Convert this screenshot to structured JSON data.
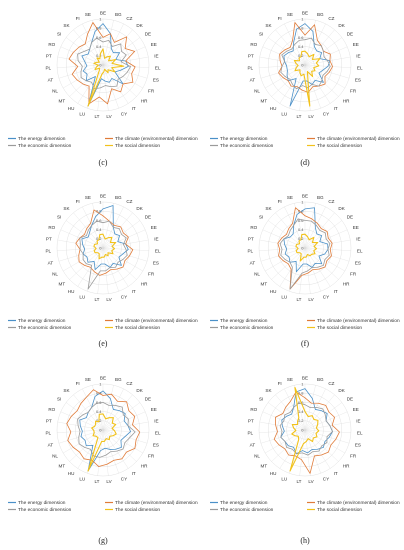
{
  "figure": {
    "countries": [
      "BE",
      "BG",
      "CZ",
      "DK",
      "DE",
      "EE",
      "IE",
      "EL",
      "ES",
      "FR",
      "HR",
      "IT",
      "CY",
      "LV",
      "LT",
      "LU",
      "HU",
      "MT",
      "NL",
      "AT",
      "PL",
      "PT",
      "RO",
      "SI",
      "SK",
      "FI",
      "SE"
    ],
    "ticks": [
      "0",
      "0.2",
      "0.4",
      "0.6",
      "0.8",
      "1"
    ],
    "legend": {
      "energy": "The energy dimension",
      "climate": "The climate (environmental) dimension",
      "economic": "The economic dimension",
      "social": "The social dimension"
    },
    "colors": {
      "energy": "#4a90c8",
      "climate": "#e07b39",
      "economic": "#9b9b9b",
      "social": "#f2c21b",
      "grid": "#d9d9d9"
    }
  },
  "chart_data": [
    {
      "type": "radar",
      "panel": "(c)",
      "axes_range": [
        0,
        1
      ],
      "series": [
        {
          "name": "The energy dimension",
          "values": [
            0.9,
            0.7,
            0.4,
            0.35,
            0.45,
            0.3,
            0.5,
            0.55,
            0.4,
            0.3,
            0.6,
            0.35,
            0.4,
            0.35,
            0.3,
            0.95,
            0.3,
            0.5,
            0.4,
            0.45,
            0.35,
            0.4,
            0.5,
            0.4,
            0.45,
            0.55,
            0.75
          ]
        },
        {
          "name": "The climate (environmental) dimension",
          "values": [
            0.6,
            0.7,
            0.55,
            0.8,
            0.6,
            0.75,
            0.5,
            0.7,
            0.65,
            0.75,
            0.6,
            0.7,
            0.55,
            0.85,
            0.7,
            0.9,
            0.55,
            0.6,
            0.65,
            0.7,
            0.55,
            0.75,
            0.7,
            0.65,
            0.6,
            0.75,
            0.95
          ]
        },
        {
          "name": "The economic dimension",
          "values": [
            0.5,
            0.55,
            0.45,
            0.6,
            0.5,
            0.55,
            0.4,
            0.6,
            0.55,
            0.5,
            0.45,
            0.55,
            0.5,
            0.45,
            0.5,
            0.55,
            0.45,
            0.5,
            0.55,
            0.5,
            0.45,
            0.55,
            0.6,
            0.5,
            0.45,
            0.55,
            0.6
          ]
        },
        {
          "name": "The social dimension",
          "values": [
            0.35,
            0.15,
            0.2,
            0.25,
            0.15,
            0.3,
            0.2,
            0.45,
            0.2,
            0.3,
            0.15,
            0.2,
            0.1,
            0.15,
            0.2,
            0.95,
            0.15,
            0.1,
            0.2,
            0.15,
            0.1,
            0.2,
            0.15,
            0.1,
            0.2,
            0.15,
            0.25
          ]
        }
      ]
    },
    {
      "type": "radar",
      "panel": "(d)",
      "axes_range": [
        0,
        1
      ],
      "series": [
        {
          "name": "The energy dimension",
          "values": [
            0.9,
            0.75,
            0.45,
            0.4,
            0.45,
            0.35,
            0.55,
            0.5,
            0.4,
            0.35,
            0.55,
            0.4,
            0.45,
            0.35,
            0.35,
            0.95,
            0.35,
            0.5,
            0.45,
            0.4,
            0.4,
            0.45,
            0.5,
            0.45,
            0.4,
            0.55,
            0.8
          ]
        },
        {
          "name": "The climate (environmental) dimension",
          "values": [
            0.65,
            0.9,
            0.6,
            0.55,
            0.5,
            0.6,
            0.55,
            0.6,
            0.55,
            0.5,
            0.6,
            0.55,
            0.5,
            0.6,
            0.55,
            0.5,
            0.55,
            0.5,
            0.55,
            0.6,
            0.5,
            0.55,
            0.6,
            0.55,
            0.5,
            0.6,
            0.95
          ]
        },
        {
          "name": "The economic dimension",
          "values": [
            0.55,
            0.6,
            0.5,
            0.55,
            0.5,
            0.45,
            0.5,
            0.55,
            0.5,
            0.45,
            0.5,
            0.55,
            0.45,
            0.5,
            0.45,
            0.55,
            0.5,
            0.45,
            0.5,
            0.55,
            0.5,
            0.45,
            0.55,
            0.5,
            0.45,
            0.5,
            0.55
          ]
        },
        {
          "name": "The social dimension",
          "values": [
            0.3,
            0.25,
            0.2,
            0.3,
            0.2,
            0.35,
            0.25,
            0.3,
            0.2,
            0.25,
            0.2,
            0.3,
            0.15,
            0.9,
            0.2,
            0.25,
            0.2,
            0.15,
            0.25,
            0.2,
            0.15,
            0.2,
            0.25,
            0.15,
            0.2,
            0.2,
            0.3
          ]
        }
      ]
    },
    {
      "type": "radar",
      "panel": "(e)",
      "axes_range": [
        0,
        1
      ],
      "series": [
        {
          "name": "The energy dimension",
          "values": [
            0.85,
            0.95,
            0.5,
            0.4,
            0.45,
            0.35,
            0.5,
            0.55,
            0.45,
            0.4,
            0.55,
            0.4,
            0.45,
            0.35,
            0.35,
            0.5,
            0.35,
            0.45,
            0.4,
            0.45,
            0.4,
            0.45,
            0.5,
            0.4,
            0.45,
            0.55,
            0.7
          ]
        },
        {
          "name": "The climate (environmental) dimension",
          "values": [
            0.7,
            0.6,
            0.55,
            0.6,
            0.55,
            0.6,
            0.5,
            0.65,
            0.6,
            0.55,
            0.6,
            0.55,
            0.5,
            0.55,
            0.6,
            0.55,
            0.5,
            0.55,
            0.6,
            0.55,
            0.5,
            0.6,
            0.55,
            0.5,
            0.55,
            0.6,
            0.85
          ]
        },
        {
          "name": "The economic dimension",
          "values": [
            0.55,
            0.6,
            0.5,
            0.55,
            0.5,
            0.55,
            0.45,
            0.5,
            0.55,
            0.5,
            0.45,
            0.5,
            0.45,
            0.5,
            0.5,
            0.95,
            0.45,
            0.5,
            0.5,
            0.45,
            0.5,
            0.5,
            0.55,
            0.45,
            0.5,
            0.55,
            0.6
          ]
        },
        {
          "name": "The social dimension",
          "values": [
            0.3,
            0.2,
            0.25,
            0.3,
            0.2,
            0.3,
            0.2,
            0.25,
            0.2,
            0.25,
            0.15,
            0.2,
            0.15,
            0.2,
            0.2,
            0.25,
            0.15,
            0.15,
            0.2,
            0.2,
            0.15,
            0.2,
            0.2,
            0.15,
            0.2,
            0.2,
            0.3
          ]
        }
      ]
    },
    {
      "type": "radar",
      "panel": "(f)",
      "axes_range": [
        0,
        1
      ],
      "series": [
        {
          "name": "The energy dimension",
          "values": [
            0.85,
            0.9,
            0.5,
            0.4,
            0.45,
            0.35,
            0.5,
            0.5,
            0.45,
            0.35,
            0.5,
            0.4,
            0.45,
            0.35,
            0.35,
            0.55,
            0.35,
            0.45,
            0.4,
            0.45,
            0.4,
            0.45,
            0.5,
            0.4,
            0.4,
            0.55,
            0.75
          ]
        },
        {
          "name": "The climate (environmental) dimension",
          "values": [
            0.7,
            0.65,
            0.6,
            0.55,
            0.6,
            0.55,
            0.6,
            0.55,
            0.6,
            0.55,
            0.6,
            0.55,
            0.5,
            0.55,
            0.6,
            0.95,
            0.55,
            0.5,
            0.55,
            0.6,
            0.55,
            0.6,
            0.55,
            0.5,
            0.55,
            0.6,
            0.9
          ]
        },
        {
          "name": "The economic dimension",
          "values": [
            0.6,
            0.6,
            0.55,
            0.5,
            0.55,
            0.5,
            0.55,
            0.5,
            0.55,
            0.5,
            0.55,
            0.5,
            0.45,
            0.5,
            0.55,
            0.95,
            0.5,
            0.45,
            0.5,
            0.55,
            0.5,
            0.55,
            0.5,
            0.45,
            0.5,
            0.55,
            0.65
          ]
        },
        {
          "name": "The social dimension",
          "values": [
            0.3,
            0.25,
            0.2,
            0.3,
            0.2,
            0.3,
            0.2,
            0.25,
            0.2,
            0.25,
            0.2,
            0.2,
            0.15,
            0.2,
            0.2,
            0.3,
            0.15,
            0.15,
            0.2,
            0.2,
            0.15,
            0.2,
            0.2,
            0.15,
            0.2,
            0.2,
            0.3
          ]
        }
      ]
    },
    {
      "type": "radar",
      "panel": "(g)",
      "axes_range": [
        0,
        1
      ],
      "series": [
        {
          "name": "The energy dimension",
          "values": [
            0.85,
            0.7,
            0.5,
            0.55,
            0.6,
            0.5,
            0.55,
            0.6,
            0.5,
            0.45,
            0.55,
            0.5,
            0.45,
            0.4,
            0.45,
            0.95,
            0.4,
            0.5,
            0.45,
            0.5,
            0.45,
            0.5,
            0.55,
            0.45,
            0.5,
            0.55,
            0.75
          ]
        },
        {
          "name": "The climate (environmental) dimension",
          "values": [
            0.75,
            0.8,
            0.7,
            0.8,
            0.7,
            0.75,
            0.65,
            0.8,
            0.75,
            0.8,
            0.7,
            0.75,
            0.7,
            0.75,
            0.8,
            0.7,
            0.75,
            0.7,
            0.75,
            0.8,
            0.7,
            0.8,
            0.75,
            0.7,
            0.75,
            0.8,
            0.9
          ]
        },
        {
          "name": "The economic dimension",
          "values": [
            0.6,
            0.55,
            0.6,
            0.65,
            0.55,
            0.6,
            0.55,
            0.7,
            0.6,
            0.55,
            0.6,
            0.55,
            0.5,
            0.55,
            0.6,
            0.6,
            0.5,
            0.55,
            0.6,
            0.55,
            0.5,
            0.55,
            0.6,
            0.55,
            0.5,
            0.55,
            0.6
          ]
        },
        {
          "name": "The social dimension",
          "values": [
            0.35,
            0.25,
            0.3,
            0.35,
            0.25,
            0.3,
            0.2,
            0.25,
            0.3,
            0.25,
            0.2,
            0.25,
            0.2,
            0.25,
            0.25,
            0.95,
            0.2,
            0.2,
            0.25,
            0.2,
            0.2,
            0.25,
            0.2,
            0.2,
            0.25,
            0.2,
            0.35
          ]
        }
      ]
    },
    {
      "type": "radar",
      "panel": "(h)",
      "axes_range": [
        0,
        1
      ],
      "series": [
        {
          "name": "The energy dimension",
          "values": [
            0.9,
            0.7,
            0.5,
            0.55,
            0.6,
            0.5,
            0.55,
            0.6,
            0.55,
            0.5,
            0.55,
            0.5,
            0.45,
            0.5,
            0.45,
            0.55,
            0.45,
            0.5,
            0.5,
            0.55,
            0.45,
            0.5,
            0.55,
            0.5,
            0.45,
            0.55,
            0.85
          ]
        },
        {
          "name": "The climate (environmental) dimension",
          "values": [
            0.7,
            0.6,
            0.65,
            0.7,
            0.65,
            0.7,
            0.6,
            0.75,
            0.7,
            0.65,
            0.7,
            0.65,
            0.6,
            0.95,
            0.65,
            0.6,
            0.65,
            0.6,
            0.65,
            0.7,
            0.6,
            0.65,
            0.7,
            0.6,
            0.65,
            0.7,
            0.85
          ]
        },
        {
          "name": "The economic dimension",
          "values": [
            0.55,
            0.5,
            0.55,
            0.6,
            0.55,
            0.5,
            0.55,
            0.6,
            0.5,
            0.55,
            0.5,
            0.55,
            0.5,
            0.55,
            0.5,
            0.55,
            0.5,
            0.55,
            0.5,
            0.55,
            0.5,
            0.55,
            0.5,
            0.55,
            0.5,
            0.55,
            0.6
          ]
        },
        {
          "name": "The social dimension",
          "values": [
            0.4,
            0.3,
            0.35,
            0.3,
            0.35,
            0.3,
            0.25,
            0.3,
            0.25,
            0.3,
            0.25,
            0.3,
            0.2,
            0.25,
            0.3,
            0.95,
            0.25,
            0.2,
            0.25,
            0.3,
            0.2,
            0.25,
            0.3,
            0.2,
            0.25,
            0.3,
            0.95
          ]
        }
      ]
    }
  ]
}
